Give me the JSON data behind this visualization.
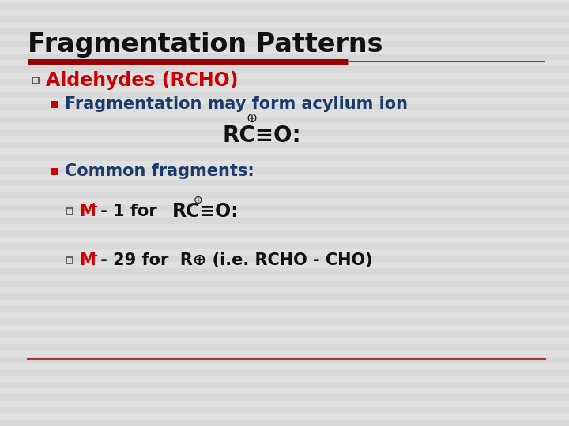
{
  "title": "Fragmentation Patterns",
  "title_color": "#111111",
  "title_fontsize": 24,
  "bg_color": "#dcdcdc",
  "stripe_color1": "#d8d8d8",
  "stripe_color2": "#e0e0e0",
  "red_line_color": "#990000",
  "thin_line_color": "#aa3333",
  "bullet1_text": "Aldehydes (RCHO)",
  "bullet1_color": "#cc0000",
  "bullet2_text": "Fragmentation may form acylium ion",
  "bullet2_color": "#1a3a6b",
  "acylium_color": "#111111",
  "bullet3_text": "Common fragments:",
  "bullet3_color": "#1a3a6b",
  "frag1_color_red": "#cc0000",
  "frag1_color_dark": "#111111",
  "frag2_color_red": "#cc0000",
  "frag2_color_dark": "#111111",
  "open_sq_color": "#555555",
  "filled_sq_color": "#cc0000"
}
